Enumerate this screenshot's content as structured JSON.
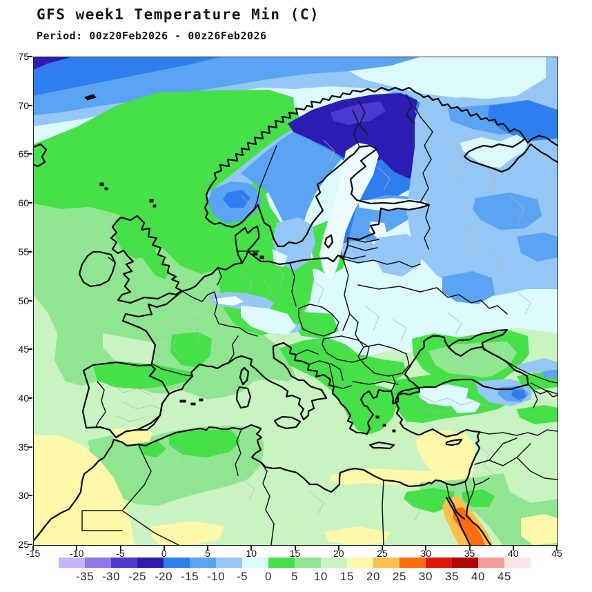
{
  "header": {
    "title": "GFS week1 Temperature Min (C)",
    "period": "Period: 00z20Feb2026 - 00z26Feb2026"
  },
  "axes": {
    "lat_ticks": [
      "75",
      "70",
      "65",
      "60",
      "55",
      "50",
      "45",
      "40",
      "35",
      "30",
      "25"
    ],
    "lon_ticks": [
      "-15",
      "-10",
      "-5",
      "0",
      "5",
      "10",
      "15",
      "20",
      "25",
      "30",
      "35",
      "40",
      "45"
    ],
    "lat_range": [
      25,
      75
    ],
    "lon_range": [
      -15,
      45
    ]
  },
  "colorbar": {
    "unit": "C",
    "boundary_labels": [
      "-35",
      "-30",
      "-25",
      "-20",
      "-15",
      "-10",
      "-5",
      "0",
      "5",
      "10",
      "15",
      "20",
      "25",
      "30",
      "35",
      "40",
      "45"
    ],
    "segment_colors": [
      "#c7b4f6",
      "#9176eb",
      "#4b3ad2",
      "#2c1cb4",
      "#2f7ef0",
      "#5ba3f3",
      "#94c7f5",
      "#dcf9fc",
      "#46e049",
      "#90e690",
      "#c9f4c2",
      "#fdf7a9",
      "#fdbe4b",
      "#fd6c0d",
      "#e21507",
      "#ae0505",
      "#f59c9c",
      "#fbe5e4"
    ]
  }
}
